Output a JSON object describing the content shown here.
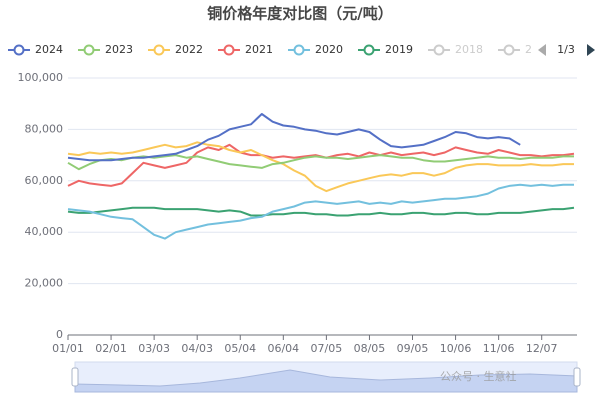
{
  "chart_data": {
    "type": "line",
    "title": "铜价格年度对比图（元/吨）",
    "categories": [
      "01/01",
      null,
      null,
      null,
      "02/01",
      null,
      null,
      null,
      "03/03",
      null,
      null,
      null,
      "04/03",
      null,
      null,
      null,
      "05/04",
      null,
      null,
      null,
      "06/04",
      null,
      null,
      null,
      "07/05",
      null,
      null,
      null,
      "08/05",
      null,
      null,
      null,
      "09/05",
      null,
      null,
      null,
      "10/06",
      null,
      null,
      null,
      "11/06",
      null,
      null,
      null,
      "12/07",
      null,
      null,
      null
    ],
    "series": [
      {
        "name": "2024",
        "color": "#5470c6",
        "values": [
          69000,
          68500,
          68000,
          68000,
          68000,
          68500,
          69000,
          69000,
          69500,
          70000,
          70500,
          72000,
          73500,
          76000,
          77500,
          80000,
          81000,
          82000,
          86000,
          83000,
          81500,
          81000,
          80000,
          79500,
          78500,
          78000,
          79000,
          80000,
          79000,
          76000,
          73500,
          73000,
          73500,
          74000,
          75500,
          77000,
          79000,
          78500,
          77000,
          76500,
          77000,
          76500,
          74000,
          null,
          null,
          null,
          null,
          null
        ]
      },
      {
        "name": "2023",
        "color": "#91cc75",
        "values": [
          67000,
          64500,
          66500,
          68000,
          68500,
          68000,
          69000,
          69500,
          69000,
          69500,
          70000,
          69000,
          69500,
          68500,
          67500,
          66500,
          66000,
          65500,
          65000,
          66500,
          67000,
          68000,
          69000,
          69500,
          69000,
          69000,
          68500,
          69000,
          69500,
          70000,
          69500,
          69000,
          69000,
          68000,
          67500,
          67500,
          68000,
          68500,
          69000,
          69500,
          69000,
          69000,
          68500,
          69000,
          69000,
          69000,
          69500,
          69500
        ]
      },
      {
        "name": "2022",
        "color": "#fac858",
        "values": [
          70500,
          70000,
          71000,
          70500,
          71000,
          70500,
          71000,
          72000,
          73000,
          74000,
          73000,
          73500,
          75000,
          74000,
          73500,
          72000,
          71000,
          72000,
          70000,
          68000,
          66500,
          64000,
          62000,
          58000,
          56000,
          57500,
          59000,
          60000,
          61000,
          62000,
          62500,
          62000,
          63000,
          63000,
          62000,
          63000,
          65000,
          66000,
          66500,
          66500,
          66000,
          66000,
          66000,
          66500,
          66000,
          66000,
          66500,
          66500
        ]
      },
      {
        "name": "2021",
        "color": "#ee6666",
        "values": [
          58000,
          60000,
          59000,
          58500,
          58000,
          59000,
          63000,
          67000,
          66000,
          65000,
          66000,
          67000,
          71000,
          73000,
          72000,
          74000,
          71000,
          70000,
          70000,
          69000,
          69500,
          69000,
          69500,
          70000,
          69000,
          70000,
          70500,
          69500,
          71000,
          70000,
          71000,
          70000,
          70500,
          71000,
          70000,
          71000,
          73000,
          72000,
          71000,
          70500,
          72000,
          71000,
          70000,
          70000,
          69500,
          70000,
          70000,
          70500
        ]
      },
      {
        "name": "2020",
        "color": "#73c0de",
        "values": [
          49000,
          48500,
          48000,
          47000,
          46000,
          45500,
          45000,
          42000,
          39000,
          37500,
          40000,
          41000,
          42000,
          43000,
          43500,
          44000,
          44500,
          45500,
          46000,
          48000,
          49000,
          50000,
          51500,
          52000,
          51500,
          51000,
          51500,
          52000,
          51000,
          51500,
          51000,
          52000,
          51500,
          52000,
          52500,
          53000,
          53000,
          53500,
          54000,
          55000,
          57000,
          58000,
          58500,
          58000,
          58500,
          58000,
          58500,
          58500
        ]
      },
      {
        "name": "2019",
        "color": "#3ba272",
        "values": [
          48000,
          47500,
          47500,
          48000,
          48500,
          49000,
          49500,
          49500,
          49500,
          49000,
          49000,
          49000,
          49000,
          48500,
          48000,
          48500,
          48000,
          46500,
          46500,
          47000,
          47000,
          47500,
          47500,
          47000,
          47000,
          46500,
          46500,
          47000,
          47000,
          47500,
          47000,
          47000,
          47500,
          47500,
          47000,
          47000,
          47500,
          47500,
          47000,
          47000,
          47500,
          47500,
          47500,
          48000,
          48500,
          49000,
          49000,
          49500
        ]
      }
    ],
    "legend_inactive": [
      "2018",
      "2"
    ],
    "legend_page": "1/3",
    "watermark": "公众号 · 生意社",
    "ylim": [
      0,
      100000
    ],
    "yticks": [
      0,
      {
        "value": 20000,
        "label": "20,000"
      },
      {
        "value": 40000,
        "label": "40,000"
      },
      {
        "value": 60000,
        "label": "60,000"
      },
      {
        "value": 80000,
        "label": "80,000"
      },
      {
        "value": 100000,
        "label": "100,000"
      }
    ],
    "grid": true
  }
}
